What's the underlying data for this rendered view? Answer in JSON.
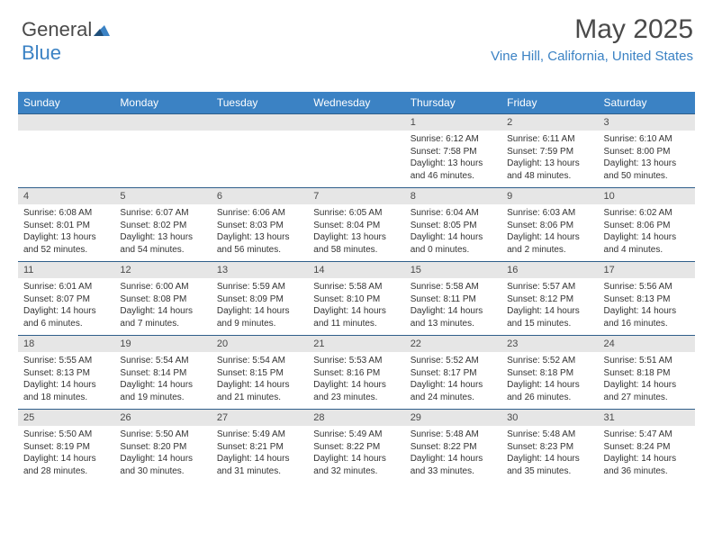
{
  "logo": {
    "text1": "General",
    "text2": "Blue"
  },
  "title": "May 2025",
  "location": "Vine Hill, California, United States",
  "colors": {
    "header_bg": "#3b82c4",
    "header_text": "#ffffff",
    "daybar_bg": "#e6e6e6",
    "border": "#2f5e8a",
    "text": "#333333",
    "title_text": "#4a4a4a"
  },
  "weekdays": [
    "Sunday",
    "Monday",
    "Tuesday",
    "Wednesday",
    "Thursday",
    "Friday",
    "Saturday"
  ],
  "weeks": [
    [
      null,
      null,
      null,
      null,
      {
        "n": "1",
        "sr": "6:12 AM",
        "ss": "7:58 PM",
        "dl": "13 hours and 46 minutes."
      },
      {
        "n": "2",
        "sr": "6:11 AM",
        "ss": "7:59 PM",
        "dl": "13 hours and 48 minutes."
      },
      {
        "n": "3",
        "sr": "6:10 AM",
        "ss": "8:00 PM",
        "dl": "13 hours and 50 minutes."
      }
    ],
    [
      {
        "n": "4",
        "sr": "6:08 AM",
        "ss": "8:01 PM",
        "dl": "13 hours and 52 minutes."
      },
      {
        "n": "5",
        "sr": "6:07 AM",
        "ss": "8:02 PM",
        "dl": "13 hours and 54 minutes."
      },
      {
        "n": "6",
        "sr": "6:06 AM",
        "ss": "8:03 PM",
        "dl": "13 hours and 56 minutes."
      },
      {
        "n": "7",
        "sr": "6:05 AM",
        "ss": "8:04 PM",
        "dl": "13 hours and 58 minutes."
      },
      {
        "n": "8",
        "sr": "6:04 AM",
        "ss": "8:05 PM",
        "dl": "14 hours and 0 minutes."
      },
      {
        "n": "9",
        "sr": "6:03 AM",
        "ss": "8:06 PM",
        "dl": "14 hours and 2 minutes."
      },
      {
        "n": "10",
        "sr": "6:02 AM",
        "ss": "8:06 PM",
        "dl": "14 hours and 4 minutes."
      }
    ],
    [
      {
        "n": "11",
        "sr": "6:01 AM",
        "ss": "8:07 PM",
        "dl": "14 hours and 6 minutes."
      },
      {
        "n": "12",
        "sr": "6:00 AM",
        "ss": "8:08 PM",
        "dl": "14 hours and 7 minutes."
      },
      {
        "n": "13",
        "sr": "5:59 AM",
        "ss": "8:09 PM",
        "dl": "14 hours and 9 minutes."
      },
      {
        "n": "14",
        "sr": "5:58 AM",
        "ss": "8:10 PM",
        "dl": "14 hours and 11 minutes."
      },
      {
        "n": "15",
        "sr": "5:58 AM",
        "ss": "8:11 PM",
        "dl": "14 hours and 13 minutes."
      },
      {
        "n": "16",
        "sr": "5:57 AM",
        "ss": "8:12 PM",
        "dl": "14 hours and 15 minutes."
      },
      {
        "n": "17",
        "sr": "5:56 AM",
        "ss": "8:13 PM",
        "dl": "14 hours and 16 minutes."
      }
    ],
    [
      {
        "n": "18",
        "sr": "5:55 AM",
        "ss": "8:13 PM",
        "dl": "14 hours and 18 minutes."
      },
      {
        "n": "19",
        "sr": "5:54 AM",
        "ss": "8:14 PM",
        "dl": "14 hours and 19 minutes."
      },
      {
        "n": "20",
        "sr": "5:54 AM",
        "ss": "8:15 PM",
        "dl": "14 hours and 21 minutes."
      },
      {
        "n": "21",
        "sr": "5:53 AM",
        "ss": "8:16 PM",
        "dl": "14 hours and 23 minutes."
      },
      {
        "n": "22",
        "sr": "5:52 AM",
        "ss": "8:17 PM",
        "dl": "14 hours and 24 minutes."
      },
      {
        "n": "23",
        "sr": "5:52 AM",
        "ss": "8:18 PM",
        "dl": "14 hours and 26 minutes."
      },
      {
        "n": "24",
        "sr": "5:51 AM",
        "ss": "8:18 PM",
        "dl": "14 hours and 27 minutes."
      }
    ],
    [
      {
        "n": "25",
        "sr": "5:50 AM",
        "ss": "8:19 PM",
        "dl": "14 hours and 28 minutes."
      },
      {
        "n": "26",
        "sr": "5:50 AM",
        "ss": "8:20 PM",
        "dl": "14 hours and 30 minutes."
      },
      {
        "n": "27",
        "sr": "5:49 AM",
        "ss": "8:21 PM",
        "dl": "14 hours and 31 minutes."
      },
      {
        "n": "28",
        "sr": "5:49 AM",
        "ss": "8:22 PM",
        "dl": "14 hours and 32 minutes."
      },
      {
        "n": "29",
        "sr": "5:48 AM",
        "ss": "8:22 PM",
        "dl": "14 hours and 33 minutes."
      },
      {
        "n": "30",
        "sr": "5:48 AM",
        "ss": "8:23 PM",
        "dl": "14 hours and 35 minutes."
      },
      {
        "n": "31",
        "sr": "5:47 AM",
        "ss": "8:24 PM",
        "dl": "14 hours and 36 minutes."
      }
    ]
  ],
  "labels": {
    "sunrise": "Sunrise:",
    "sunset": "Sunset:",
    "daylight": "Daylight:"
  }
}
